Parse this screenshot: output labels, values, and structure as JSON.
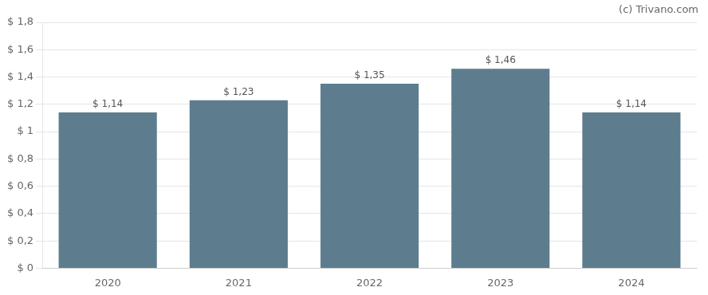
{
  "chart_data": {
    "type": "bar",
    "categories": [
      "2020",
      "2021",
      "2022",
      "2023",
      "2024"
    ],
    "values": [
      1.14,
      1.23,
      1.35,
      1.46,
      1.14
    ],
    "value_labels": [
      "$ 1,14",
      "$ 1,23",
      "$ 1,35",
      "$ 1,46",
      "$ 1,14"
    ],
    "data_labels": true,
    "color": "#5d7d8e",
    "ylim": [
      0,
      1.8
    ],
    "yticks": [
      {
        "value": 0,
        "label": "$ 0"
      },
      {
        "value": 0.2,
        "label": "$ 0,2"
      },
      {
        "value": 0.4,
        "label": "$ 0,4"
      },
      {
        "value": 0.6,
        "label": "$ 0,6"
      },
      {
        "value": 0.8,
        "label": "$ 0,8"
      },
      {
        "value": 1.0,
        "label": "$ 1"
      },
      {
        "value": 1.2,
        "label": "$ 1,2"
      },
      {
        "value": 1.4,
        "label": "$ 1,4"
      },
      {
        "value": 1.6,
        "label": "$ 1,6"
      },
      {
        "value": 1.8,
        "label": "$ 1,8"
      }
    ],
    "grid": true,
    "annotation": "(c) Trivano.com"
  }
}
